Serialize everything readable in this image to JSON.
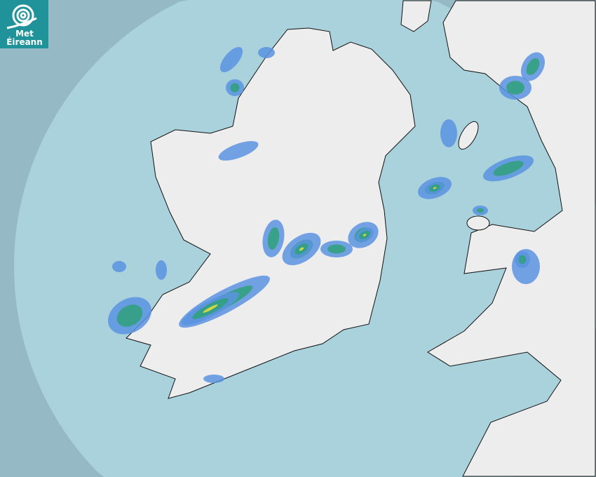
{
  "logo": {
    "line1": "Met",
    "line2": "Éireann",
    "color": "#1f9399"
  },
  "colors": {
    "outside_range": "#95b9c5",
    "sea": "#a9d2dd",
    "land": "#eeeeee",
    "rain_light": "#5b93e0",
    "rain_moderate": "#2fa07a",
    "rain_heavy": "#e8e03a"
  }
}
